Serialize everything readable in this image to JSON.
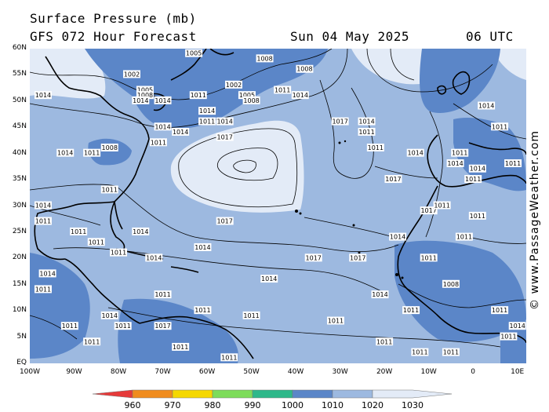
{
  "header": {
    "title": "Surface Pressure (mb)",
    "model": "GFS 072 Hour Forecast",
    "date": "Sun 04 May 2025",
    "time": "06 UTC"
  },
  "credit": "© www.PassageWeather.com",
  "axes": {
    "latitudes": [
      "60N",
      "55N",
      "50N",
      "45N",
      "40N",
      "35N",
      "30N",
      "25N",
      "20N",
      "15N",
      "10N",
      "5N",
      "EQ"
    ],
    "longitudes": [
      "100W",
      "90W",
      "80W",
      "70W",
      "60W",
      "50W",
      "40W",
      "30W",
      "20W",
      "10W",
      "0",
      "10E"
    ],
    "lat_range": [
      0,
      60
    ],
    "lon_range": [
      -100,
      12
    ]
  },
  "colorbar": {
    "labels": [
      "960",
      "970",
      "980",
      "990",
      "1000",
      "1010",
      "1020",
      "1030"
    ],
    "colors": [
      "#e63a3a",
      "#f08c1e",
      "#f5d800",
      "#7ddc5a",
      "#2eb88a",
      "#5b86c8",
      "#9db9e0",
      "#e3ebf7"
    ]
  },
  "map": {
    "ocean_color": "#9db9e0",
    "low_color": "#5b86c8",
    "high_color": "#e3ebf7",
    "isobar_labels": [
      {
        "text": "1005",
        "lon": -63,
        "lat": 59
      },
      {
        "text": "1002",
        "lon": -77,
        "lat": 55
      },
      {
        "text": "1008",
        "lon": -47,
        "lat": 58
      },
      {
        "text": "1008",
        "lon": -38,
        "lat": 56
      },
      {
        "text": "1005",
        "lon": -74,
        "lat": 52
      },
      {
        "text": "1008",
        "lon": -74,
        "lat": 51
      },
      {
        "text": "1011",
        "lon": -62,
        "lat": 51
      },
      {
        "text": "1002",
        "lon": -54,
        "lat": 53
      },
      {
        "text": "1005",
        "lon": -51,
        "lat": 51
      },
      {
        "text": "1008",
        "lon": -50,
        "lat": 50
      },
      {
        "text": "1011",
        "lon": -43,
        "lat": 52
      },
      {
        "text": "1014",
        "lon": -39,
        "lat": 51
      },
      {
        "text": "1014",
        "lon": -97,
        "lat": 51
      },
      {
        "text": "1014",
        "lon": -75,
        "lat": 50
      },
      {
        "text": "1014",
        "lon": -70,
        "lat": 50
      },
      {
        "text": "1014",
        "lon": -60,
        "lat": 48
      },
      {
        "text": "1011",
        "lon": -60,
        "lat": 46
      },
      {
        "text": "1014",
        "lon": -56,
        "lat": 46
      },
      {
        "text": "1014",
        "lon": -70,
        "lat": 45
      },
      {
        "text": "1014",
        "lon": -66,
        "lat": 44
      },
      {
        "text": "1017",
        "lon": -56,
        "lat": 43
      },
      {
        "text": "1011",
        "lon": -71,
        "lat": 42
      },
      {
        "text": "1008",
        "lon": -82,
        "lat": 41
      },
      {
        "text": "1014",
        "lon": -92,
        "lat": 40
      },
      {
        "text": "1011",
        "lon": -86,
        "lat": 40
      },
      {
        "text": "1011",
        "lon": -82,
        "lat": 33
      },
      {
        "text": "1017",
        "lon": -30,
        "lat": 46
      },
      {
        "text": "1014",
        "lon": -24,
        "lat": 46
      },
      {
        "text": "1011",
        "lon": -24,
        "lat": 44
      },
      {
        "text": "1011",
        "lon": -22,
        "lat": 41
      },
      {
        "text": "1014",
        "lon": -13,
        "lat": 40
      },
      {
        "text": "1011",
        "lon": -3,
        "lat": 40
      },
      {
        "text": "1017",
        "lon": -18,
        "lat": 35
      },
      {
        "text": "1014",
        "lon": 3,
        "lat": 49
      },
      {
        "text": "1011",
        "lon": 6,
        "lat": 45
      },
      {
        "text": "1014",
        "lon": -4,
        "lat": 38
      },
      {
        "text": "1014",
        "lon": 1,
        "lat": 37
      },
      {
        "text": "1011",
        "lon": 9,
        "lat": 38
      },
      {
        "text": "1011",
        "lon": 0,
        "lat": 35
      },
      {
        "text": "1014",
        "lon": -97,
        "lat": 30
      },
      {
        "text": "1011",
        "lon": -97,
        "lat": 27
      },
      {
        "text": "1011",
        "lon": -89,
        "lat": 25
      },
      {
        "text": "1011",
        "lon": -85,
        "lat": 23
      },
      {
        "text": "1011",
        "lon": -80,
        "lat": 21
      },
      {
        "text": "1014",
        "lon": -75,
        "lat": 25
      },
      {
        "text": "1014",
        "lon": -61,
        "lat": 22
      },
      {
        "text": "1014",
        "lon": -72,
        "lat": 20
      },
      {
        "text": "1017",
        "lon": -56,
        "lat": 27
      },
      {
        "text": "1017",
        "lon": -36,
        "lat": 20
      },
      {
        "text": "1017",
        "lon": -26,
        "lat": 20
      },
      {
        "text": "1014",
        "lon": -46,
        "lat": 16
      },
      {
        "text": "1014",
        "lon": -21,
        "lat": 13
      },
      {
        "text": "1014",
        "lon": -17,
        "lat": 24
      },
      {
        "text": "1017",
        "lon": -10,
        "lat": 29
      },
      {
        "text": "1011",
        "lon": -7,
        "lat": 30
      },
      {
        "text": "1011",
        "lon": 1,
        "lat": 28
      },
      {
        "text": "1011",
        "lon": -2,
        "lat": 24
      },
      {
        "text": "1011",
        "lon": -10,
        "lat": 20
      },
      {
        "text": "1008",
        "lon": -5,
        "lat": 15
      },
      {
        "text": "1011",
        "lon": -14,
        "lat": 10
      },
      {
        "text": "1011",
        "lon": 6,
        "lat": 10
      },
      {
        "text": "1011",
        "lon": -70,
        "lat": 13
      },
      {
        "text": "1011",
        "lon": -61,
        "lat": 10
      },
      {
        "text": "1011",
        "lon": -50,
        "lat": 9
      },
      {
        "text": "1011",
        "lon": -31,
        "lat": 8
      },
      {
        "text": "1011",
        "lon": -20,
        "lat": 4
      },
      {
        "text": "1011",
        "lon": -12,
        "lat": 2
      },
      {
        "text": "1011",
        "lon": -5,
        "lat": 2
      },
      {
        "text": "1011",
        "lon": -55,
        "lat": 1
      },
      {
        "text": "1011",
        "lon": -66,
        "lat": 3
      },
      {
        "text": "1011",
        "lon": -86,
        "lat": 4
      },
      {
        "text": "1011",
        "lon": -97,
        "lat": 14
      },
      {
        "text": "1014",
        "lon": -96,
        "lat": 17
      },
      {
        "text": "1017",
        "lon": -70,
        "lat": 7
      },
      {
        "text": "1011",
        "lon": -91,
        "lat": 7
      },
      {
        "text": "1011",
        "lon": -79,
        "lat": 7
      },
      {
        "text": "1014",
        "lon": -82,
        "lat": 9
      },
      {
        "text": "1011",
        "lon": 8,
        "lat": 5
      },
      {
        "text": "1014",
        "lon": 10,
        "lat": 7
      }
    ]
  }
}
